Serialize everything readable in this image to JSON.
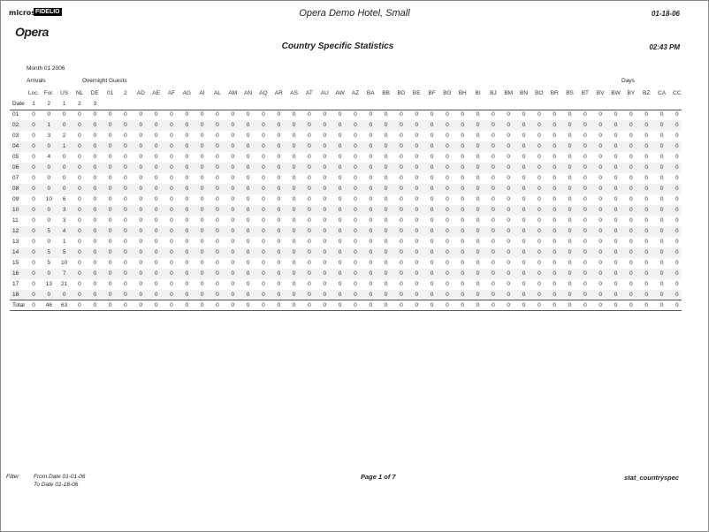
{
  "header": {
    "logo_brand": "micros",
    "logo_partner": "FIDELIO",
    "logo_product": "Opera",
    "hotel": "Opera Demo Hotel, Small",
    "date": "01-18-06",
    "title": "Country Specific Statistics",
    "time": "02:43 PM"
  },
  "report": {
    "month": "Month  01 2006",
    "group_arrivals": "Arrivals",
    "group_guests": "Overnight Guests",
    "group_days": "Days"
  },
  "table": {
    "columns": [
      "Loc.",
      "For.",
      "US",
      "NL",
      "DE",
      "01",
      "2",
      "AD",
      "AE",
      "AF",
      "AG",
      "AI",
      "AL",
      "AM",
      "AN",
      "AQ",
      "AR",
      "AS",
      "AT",
      "AU",
      "AW",
      "AZ",
      "BA",
      "BB",
      "BD",
      "BE",
      "BF",
      "BG",
      "BH",
      "BI",
      "BJ",
      "BM",
      "BN",
      "BO",
      "BR",
      "BS",
      "BT",
      "BV",
      "BW",
      "BY",
      "BZ",
      "CA",
      "CC"
    ],
    "date_label": "Date",
    "subcodes": [
      "1",
      "2",
      "1",
      "2",
      "3"
    ],
    "rows": [
      [
        "01",
        0,
        0,
        0,
        0,
        0,
        0,
        0,
        0,
        0,
        0,
        0,
        0,
        0,
        0,
        0,
        0,
        0,
        0,
        0,
        0,
        0,
        0,
        0,
        0,
        0,
        0,
        0,
        0,
        0,
        0,
        0,
        0,
        0,
        0,
        0,
        0,
        0,
        0,
        0,
        0,
        0,
        0,
        0
      ],
      [
        "02",
        0,
        1,
        0,
        0,
        0,
        0,
        0,
        0,
        0,
        0,
        0,
        0,
        0,
        0,
        0,
        0,
        0,
        0,
        0,
        0,
        0,
        0,
        0,
        0,
        0,
        0,
        0,
        0,
        0,
        0,
        0,
        0,
        0,
        0,
        0,
        0,
        0,
        0,
        0,
        0,
        0,
        0,
        0
      ],
      [
        "03",
        0,
        3,
        2,
        0,
        0,
        0,
        0,
        0,
        0,
        0,
        0,
        0,
        0,
        0,
        0,
        0,
        0,
        0,
        0,
        0,
        0,
        0,
        0,
        0,
        0,
        0,
        0,
        0,
        0,
        0,
        0,
        0,
        0,
        0,
        0,
        0,
        0,
        0,
        0,
        0,
        0,
        0,
        0
      ],
      [
        "04",
        0,
        0,
        1,
        0,
        0,
        0,
        0,
        0,
        0,
        0,
        0,
        0,
        0,
        0,
        0,
        0,
        0,
        0,
        0,
        0,
        0,
        0,
        0,
        0,
        0,
        0,
        0,
        0,
        0,
        0,
        0,
        0,
        0,
        0,
        0,
        0,
        0,
        0,
        0,
        0,
        0,
        0,
        0
      ],
      [
        "05",
        0,
        4,
        0,
        0,
        0,
        0,
        0,
        0,
        0,
        0,
        0,
        0,
        0,
        0,
        0,
        0,
        0,
        0,
        0,
        0,
        0,
        0,
        0,
        0,
        0,
        0,
        0,
        0,
        0,
        0,
        0,
        0,
        0,
        0,
        0,
        0,
        0,
        0,
        0,
        0,
        0,
        0,
        0
      ],
      [
        "06",
        0,
        0,
        0,
        0,
        0,
        0,
        0,
        0,
        0,
        0,
        0,
        0,
        0,
        0,
        0,
        0,
        0,
        0,
        0,
        0,
        0,
        0,
        0,
        0,
        0,
        0,
        0,
        0,
        0,
        0,
        0,
        0,
        0,
        0,
        0,
        0,
        0,
        0,
        0,
        0,
        0,
        0,
        0
      ],
      [
        "07",
        0,
        0,
        0,
        0,
        0,
        0,
        0,
        0,
        0,
        0,
        0,
        0,
        0,
        0,
        0,
        0,
        0,
        0,
        0,
        0,
        0,
        0,
        0,
        0,
        0,
        0,
        0,
        0,
        0,
        0,
        0,
        0,
        0,
        0,
        0,
        0,
        0,
        0,
        0,
        0,
        0,
        0,
        0
      ],
      [
        "08",
        0,
        0,
        0,
        0,
        0,
        0,
        0,
        0,
        0,
        0,
        0,
        0,
        0,
        0,
        0,
        0,
        0,
        0,
        0,
        0,
        0,
        0,
        0,
        0,
        0,
        0,
        0,
        0,
        0,
        0,
        0,
        0,
        0,
        0,
        0,
        0,
        0,
        0,
        0,
        0,
        0,
        0,
        0
      ],
      [
        "09",
        0,
        10,
        6,
        0,
        0,
        0,
        0,
        0,
        0,
        0,
        0,
        0,
        0,
        0,
        0,
        0,
        0,
        0,
        0,
        0,
        0,
        0,
        0,
        0,
        0,
        0,
        0,
        0,
        0,
        0,
        0,
        0,
        0,
        0,
        0,
        0,
        0,
        0,
        0,
        0,
        0,
        0,
        0
      ],
      [
        "10",
        0,
        0,
        3,
        0,
        0,
        0,
        0,
        0,
        0,
        0,
        0,
        0,
        0,
        0,
        0,
        0,
        0,
        0,
        0,
        0,
        0,
        0,
        0,
        0,
        0,
        0,
        0,
        0,
        0,
        0,
        0,
        0,
        0,
        0,
        0,
        0,
        0,
        0,
        0,
        0,
        0,
        0,
        0
      ],
      [
        "11",
        0,
        0,
        3,
        0,
        0,
        0,
        0,
        0,
        0,
        0,
        0,
        0,
        0,
        0,
        0,
        0,
        0,
        0,
        0,
        0,
        0,
        0,
        0,
        0,
        0,
        0,
        0,
        0,
        0,
        0,
        0,
        0,
        0,
        0,
        0,
        0,
        0,
        0,
        0,
        0,
        0,
        0,
        0
      ],
      [
        "12",
        0,
        5,
        4,
        0,
        0,
        0,
        0,
        0,
        0,
        0,
        0,
        0,
        0,
        0,
        0,
        0,
        0,
        0,
        0,
        0,
        0,
        0,
        0,
        0,
        0,
        0,
        0,
        0,
        0,
        0,
        0,
        0,
        0,
        0,
        0,
        0,
        0,
        0,
        0,
        0,
        0,
        0,
        0
      ],
      [
        "13",
        0,
        0,
        1,
        0,
        0,
        0,
        0,
        0,
        0,
        0,
        0,
        0,
        0,
        0,
        0,
        0,
        0,
        0,
        0,
        0,
        0,
        0,
        0,
        0,
        0,
        0,
        0,
        0,
        0,
        0,
        0,
        0,
        0,
        0,
        0,
        0,
        0,
        0,
        0,
        0,
        0,
        0,
        0
      ],
      [
        "14",
        0,
        5,
        5,
        0,
        0,
        0,
        0,
        0,
        0,
        0,
        0,
        0,
        0,
        0,
        0,
        0,
        0,
        0,
        0,
        0,
        0,
        0,
        0,
        0,
        0,
        0,
        0,
        0,
        0,
        0,
        0,
        0,
        0,
        0,
        0,
        0,
        0,
        0,
        0,
        0,
        0,
        0,
        0
      ],
      [
        "15",
        0,
        5,
        10,
        0,
        0,
        0,
        0,
        0,
        0,
        0,
        0,
        0,
        0,
        0,
        0,
        0,
        0,
        0,
        0,
        0,
        0,
        0,
        0,
        0,
        0,
        0,
        0,
        0,
        0,
        0,
        0,
        0,
        0,
        0,
        0,
        0,
        0,
        0,
        0,
        0,
        0,
        0,
        0
      ],
      [
        "16",
        0,
        0,
        7,
        0,
        0,
        0,
        0,
        0,
        0,
        0,
        0,
        0,
        0,
        0,
        0,
        0,
        0,
        0,
        0,
        0,
        0,
        0,
        0,
        0,
        0,
        0,
        0,
        0,
        0,
        0,
        0,
        0,
        0,
        0,
        0,
        0,
        0,
        0,
        0,
        0,
        0,
        0,
        0
      ],
      [
        "17",
        0,
        13,
        21,
        0,
        0,
        0,
        0,
        0,
        0,
        0,
        0,
        0,
        0,
        0,
        0,
        0,
        0,
        0,
        0,
        0,
        0,
        0,
        0,
        0,
        0,
        0,
        0,
        0,
        0,
        0,
        0,
        0,
        0,
        0,
        0,
        0,
        0,
        0,
        0,
        0,
        0,
        0,
        0
      ],
      [
        "18",
        0,
        0,
        0,
        0,
        0,
        0,
        0,
        0,
        0,
        0,
        0,
        0,
        0,
        0,
        0,
        0,
        0,
        0,
        0,
        0,
        0,
        0,
        0,
        0,
        0,
        0,
        0,
        0,
        0,
        0,
        0,
        0,
        0,
        0,
        0,
        0,
        0,
        0,
        0,
        0,
        0,
        0,
        0
      ]
    ],
    "total": [
      "Total",
      0,
      46,
      63,
      0,
      0,
      0,
      0,
      0,
      0,
      0,
      0,
      0,
      0,
      0,
      0,
      0,
      0,
      0,
      0,
      0,
      0,
      0,
      0,
      0,
      0,
      0,
      0,
      0,
      0,
      0,
      0,
      0,
      0,
      0,
      0,
      0,
      0,
      0,
      0,
      0,
      0,
      0,
      0
    ]
  },
  "footer": {
    "filter": "Filter",
    "from": "From Date 01-01-06",
    "to": "To Date 01-18-06",
    "page": "Page 1 of 7",
    "report_id": "stat_countryspec"
  }
}
